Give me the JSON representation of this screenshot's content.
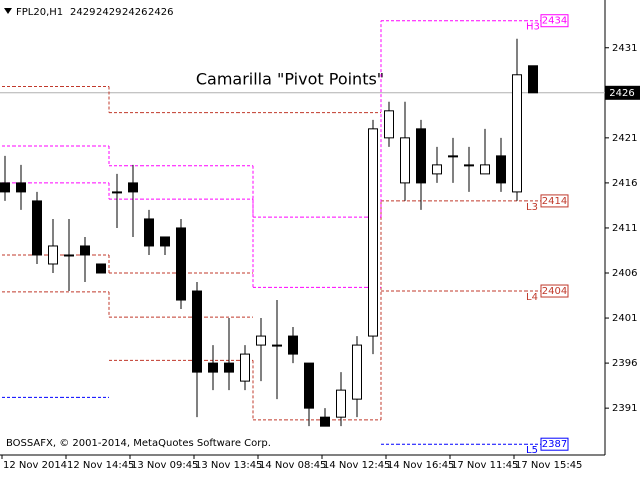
{
  "chart_data": {
    "type": "candlestick",
    "symbol": "FPL20,H1",
    "annotation": "Camarilla \"Pivot Points\"",
    "footer": "BOSSAFX, © 2001-2014, MetaQuotes Software Corp.",
    "categories": [
      "12 Nov 2014",
      null,
      null,
      null,
      "12 Nov 14:45",
      null,
      null,
      null,
      "13 Nov 09:45",
      null,
      null,
      null,
      "13 Nov 13:45",
      null,
      null,
      null,
      "14 Nov 08:45",
      null,
      null,
      null,
      "14 Nov 12:45",
      null,
      null,
      null,
      "14 Nov 16:45",
      null,
      null,
      null,
      "17 Nov 11:45",
      null,
      null,
      null,
      "17 Nov 15:45",
      null
    ],
    "candles": [
      {
        "open": 2416,
        "high": 2419,
        "low": 2414,
        "close": 2415
      },
      {
        "open": 2416,
        "high": 2418,
        "low": 2413,
        "close": 2415
      },
      {
        "open": 2414,
        "high": 2415,
        "low": 2407,
        "close": 2408
      },
      {
        "open": 2407,
        "high": 2412,
        "low": 2406,
        "close": 2409
      },
      {
        "open": 2408,
        "high": 2412,
        "low": 2404,
        "close": 2408
      },
      {
        "open": 2409,
        "high": 2410,
        "low": 2405,
        "close": 2408
      },
      {
        "open": 2407,
        "high": 2407,
        "low": 2406,
        "close": 2406
      },
      {
        "open": 2415,
        "high": 2417,
        "low": 2411,
        "close": 2415
      },
      {
        "open": 2416,
        "high": 2418,
        "low": 2410,
        "close": 2415
      },
      {
        "open": 2412,
        "high": 2413,
        "low": 2408,
        "close": 2409
      },
      {
        "open": 2410,
        "high": 2410,
        "low": 2408,
        "close": 2409
      },
      {
        "open": 2411,
        "high": 2412,
        "low": 2402,
        "close": 2403
      },
      {
        "open": 2404,
        "high": 2405,
        "low": 2390,
        "close": 2395
      },
      {
        "open": 2396,
        "high": 2398,
        "low": 2393,
        "close": 2395
      },
      {
        "open": 2396,
        "high": 2401,
        "low": 2393,
        "close": 2395
      },
      {
        "open": 2394,
        "high": 2398,
        "low": 2393,
        "close": 2397
      },
      {
        "open": 2398,
        "high": 2401,
        "low": 2394,
        "close": 2399
      },
      {
        "open": 2398,
        "high": 2403,
        "low": 2392,
        "close": 2398
      },
      {
        "open": 2399,
        "high": 2400,
        "low": 2396,
        "close": 2397
      },
      {
        "open": 2396,
        "high": 2396,
        "low": 2389,
        "close": 2391
      },
      {
        "open": 2390,
        "high": 2391,
        "low": 2389,
        "close": 2389
      },
      {
        "open": 2390,
        "high": 2395,
        "low": 2389,
        "close": 2393
      },
      {
        "open": 2392,
        "high": 2399,
        "low": 2390,
        "close": 2398
      },
      {
        "open": 2399,
        "high": 2423,
        "low": 2397,
        "close": 2422
      },
      {
        "open": 2421,
        "high": 2425,
        "low": 2420,
        "close": 2424
      },
      {
        "open": 2416,
        "high": 2425,
        "low": 2414,
        "close": 2421
      },
      {
        "open": 2422,
        "high": 2423,
        "low": 2413,
        "close": 2416
      },
      {
        "open": 2417,
        "high": 2420,
        "low": 2416,
        "close": 2418
      },
      {
        "open": 2419,
        "high": 2421,
        "low": 2416,
        "close": 2419
      },
      {
        "open": 2418,
        "high": 2420,
        "low": 2415,
        "close": 2418
      },
      {
        "open": 2417,
        "high": 2422,
        "low": 2417,
        "close": 2418
      },
      {
        "open": 2419,
        "high": 2421,
        "low": 2415,
        "close": 2416
      },
      {
        "open": 2415,
        "high": 2432,
        "low": 2414,
        "close": 2428
      },
      {
        "open": 2429,
        "high": 2429,
        "low": 2426,
        "close": 2426
      }
    ],
    "series": [
      {
        "color": "#c0392b",
        "values": [
          2426.7,
          2426.7,
          2426.7,
          2426.7,
          2426.7,
          2426.7,
          2426.7,
          2423.8,
          2423.8,
          2423.8,
          2423.8,
          2423.8,
          2423.8,
          2423.8,
          2423.8,
          2423.8,
          2423.8,
          2423.8,
          2423.8,
          2423.8,
          2423.8,
          2423.8,
          2423.8,
          2423.8,
          null,
          null,
          null,
          null,
          null,
          null,
          null,
          null,
          null,
          null
        ]
      },
      {
        "color": "#c0392b",
        "values": [
          2408,
          2408,
          2408,
          2408,
          2408,
          2408,
          2408,
          2406,
          2406,
          2406,
          2406,
          2406,
          2406,
          2406,
          2406,
          2406,
          null,
          null,
          null,
          null,
          null,
          null,
          null,
          null,
          null,
          null,
          null,
          null,
          null,
          null,
          null,
          null,
          null,
          null
        ]
      },
      {
        "color": "#c0392b",
        "label": "L4",
        "values": [
          2403.9,
          2403.9,
          2403.9,
          2403.9,
          2403.9,
          2403.9,
          2403.9,
          2401.1,
          2401.1,
          2401.1,
          2401.1,
          2401.1,
          2401.1,
          2401.1,
          2401.1,
          2401.1,
          null,
          null,
          null,
          null,
          null,
          null,
          null,
          null,
          2404,
          2404,
          2404,
          2404,
          2404,
          2404,
          2404,
          2404,
          2404,
          2404
        ]
      },
      {
        "color": "#c0392b",
        "label": "L3",
        "values": [
          null,
          null,
          null,
          null,
          null,
          null,
          null,
          2396.3,
          2396.3,
          2396.3,
          2396.3,
          2396.3,
          2396.3,
          2396.3,
          2396.3,
          2396.3,
          2389.7,
          2389.7,
          2389.7,
          2389.7,
          2389.7,
          2389.7,
          2389.7,
          2389.7,
          2414,
          2414,
          2414,
          2414,
          2414,
          2414,
          2414,
          2414,
          2414,
          2414
        ]
      },
      {
        "color": "#ff00ff",
        "label": "H3",
        "values": [
          2420.1,
          2420.1,
          2420.1,
          2420.1,
          2420.1,
          2420.1,
          2420.1,
          2417.9,
          2417.9,
          2417.9,
          2417.9,
          2417.9,
          2417.9,
          2417.9,
          2417.9,
          2417.9,
          2412.2,
          2412.2,
          2412.2,
          2412.2,
          2412.2,
          2412.2,
          2412.2,
          2412.2,
          2434,
          2434,
          2434,
          2434,
          2434,
          2434,
          2434,
          2434,
          2434,
          2434
        ]
      },
      {
        "color": "#ff00ff",
        "values": [
          2416,
          2416,
          2416,
          2416,
          2416,
          2416,
          2416,
          2414.2,
          2414.2,
          2414.2,
          2414.2,
          2414.2,
          2414.2,
          2414.2,
          2414.2,
          2414.2,
          2404.4,
          2404.4,
          2404.4,
          2404.4,
          2404.4,
          2404.4,
          2404.4,
          2404.4,
          null,
          null,
          null,
          null,
          null,
          null,
          null,
          null,
          null,
          null
        ]
      },
      {
        "color": "#0000ff",
        "label": "L5",
        "values": [
          2392.2,
          2392.2,
          2392.2,
          2392.2,
          2392.2,
          2392.2,
          2392.2,
          null,
          null,
          null,
          null,
          null,
          null,
          null,
          null,
          null,
          null,
          null,
          null,
          null,
          null,
          null,
          null,
          null,
          2387,
          2387,
          2387,
          2387,
          2387,
          2387,
          2387,
          2387,
          2387,
          2387
        ]
      }
    ],
    "ylim": [
      2385.8,
      2436.3
    ],
    "yticks": [
      2391,
      2396,
      2401,
      2406,
      2411,
      2416,
      2421,
      2426,
      2431
    ]
  }
}
